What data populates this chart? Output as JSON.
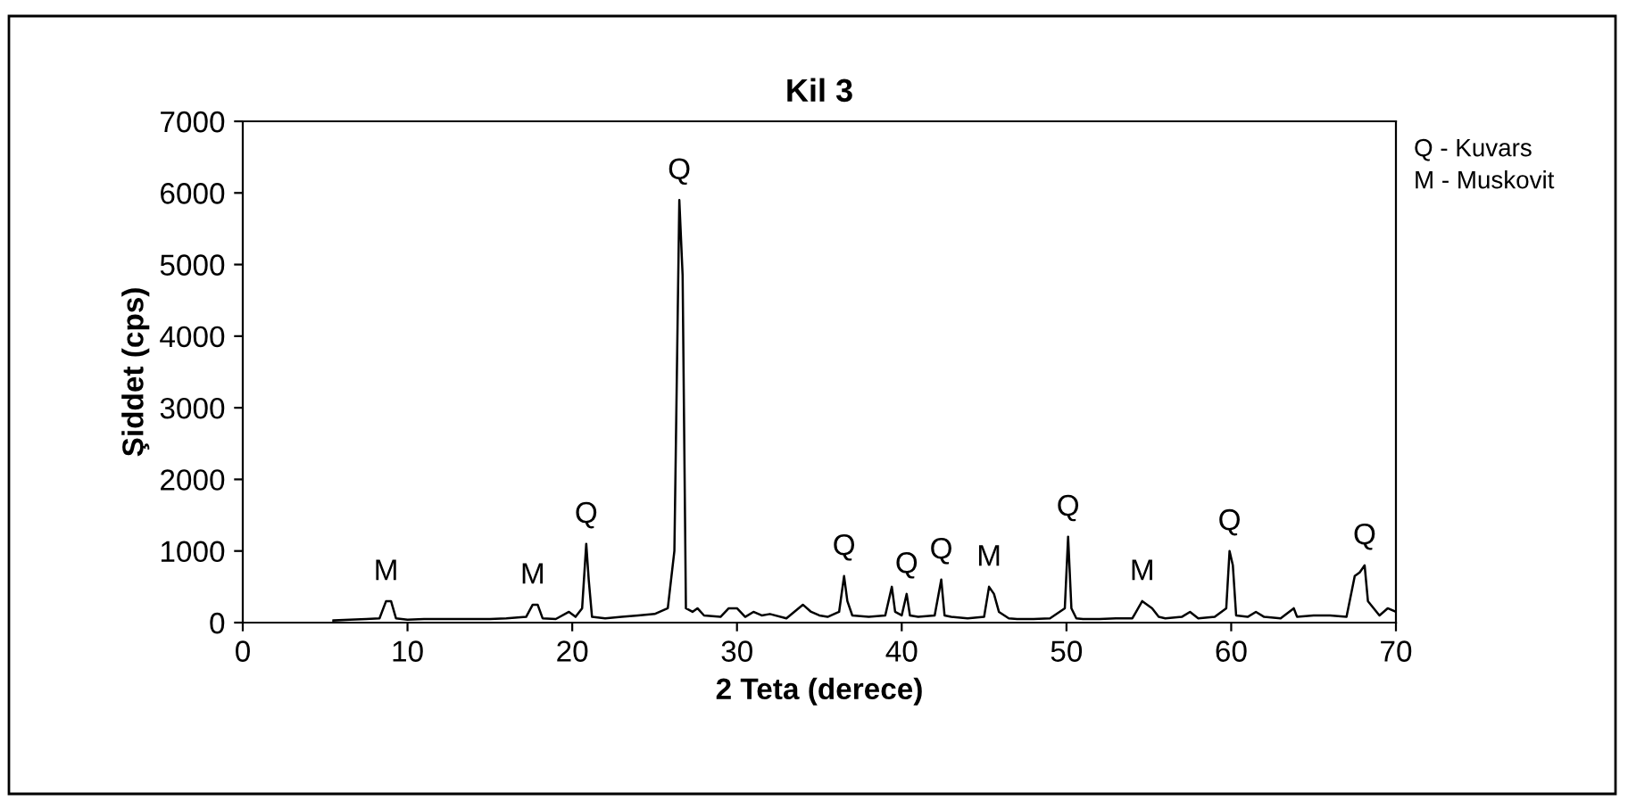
{
  "chart_data": {
    "type": "line",
    "title": "Kil 3",
    "xlabel": "2 Teta (derece)",
    "ylabel": "Şiddet (cps)",
    "xlim": [
      0,
      70
    ],
    "xticks": [
      0,
      10,
      20,
      30,
      40,
      50,
      60,
      70
    ],
    "ylim": [
      0,
      7000
    ],
    "yticks": [
      0,
      1000,
      2000,
      3000,
      4000,
      5000,
      6000,
      7000
    ],
    "grid": false,
    "legend": false,
    "marker": "none",
    "line_style": "solid",
    "series": [
      {
        "color": "#000000",
        "x": [
          5.5,
          6.5,
          7.5,
          8.3,
          8.7,
          9.0,
          9.3,
          10,
          11,
          12,
          13,
          14,
          15,
          16,
          17.2,
          17.6,
          17.9,
          18.2,
          19,
          19.8,
          20.2,
          20.6,
          20.85,
          21.0,
          21.2,
          22,
          23,
          24,
          25,
          25.8,
          26.2,
          26.5,
          26.7,
          26.9,
          27.3,
          27.6,
          28,
          29,
          29.5,
          30,
          30.5,
          31,
          31.5,
          32,
          33,
          34,
          34.5,
          35,
          35.5,
          36.2,
          36.5,
          36.7,
          37,
          38,
          39,
          39.4,
          39.6,
          40,
          40.3,
          40.5,
          41,
          42,
          42.4,
          42.6,
          43,
          44,
          45,
          45.3,
          45.6,
          45.9,
          46.5,
          47,
          48,
          49,
          49.9,
          50.1,
          50.3,
          50.6,
          51,
          52,
          53,
          54,
          54.6,
          54.9,
          55.2,
          55.6,
          56,
          57,
          57.5,
          58,
          59,
          59.7,
          59.9,
          60.1,
          60.3,
          61,
          61.5,
          62,
          63,
          63.8,
          64,
          65,
          66,
          67,
          67.5,
          67.8,
          68.1,
          68.3,
          69,
          69.5,
          70
        ],
        "values": [
          30,
          40,
          50,
          60,
          300,
          300,
          60,
          40,
          50,
          50,
          50,
          50,
          50,
          60,
          80,
          250,
          250,
          60,
          50,
          150,
          80,
          200,
          1100,
          600,
          80,
          60,
          80,
          100,
          120,
          200,
          1000,
          5900,
          4850,
          200,
          150,
          200,
          100,
          80,
          200,
          200,
          80,
          150,
          100,
          120,
          60,
          250,
          150,
          100,
          80,
          150,
          650,
          300,
          100,
          80,
          100,
          500,
          150,
          100,
          400,
          100,
          80,
          100,
          600,
          100,
          80,
          60,
          80,
          500,
          400,
          150,
          60,
          50,
          50,
          60,
          200,
          1200,
          200,
          60,
          50,
          50,
          60,
          60,
          300,
          250,
          200,
          80,
          60,
          80,
          150,
          60,
          80,
          200,
          1000,
          800,
          100,
          80,
          150,
          80,
          60,
          200,
          80,
          100,
          100,
          80,
          650,
          700,
          800,
          300,
          100,
          200,
          150
        ]
      }
    ],
    "annotations": [
      {
        "text": "M",
        "x": 8.7,
        "y": 300
      },
      {
        "text": "M",
        "x": 17.6,
        "y": 250
      },
      {
        "text": "Q",
        "x": 20.85,
        "y": 1100
      },
      {
        "text": "Q",
        "x": 26.5,
        "y": 5900
      },
      {
        "text": "Q",
        "x": 36.5,
        "y": 650
      },
      {
        "text": "Q",
        "x": 40.3,
        "y": 400
      },
      {
        "text": "Q",
        "x": 42.4,
        "y": 600
      },
      {
        "text": "M",
        "x": 45.3,
        "y": 500
      },
      {
        "text": "Q",
        "x": 50.1,
        "y": 1200
      },
      {
        "text": "M",
        "x": 54.6,
        "y": 300
      },
      {
        "text": "Q",
        "x": 59.9,
        "y": 1000
      },
      {
        "text": "Q",
        "x": 68.1,
        "y": 800
      },
      "Q - Kuvars",
      "M - Muskovit"
    ]
  }
}
